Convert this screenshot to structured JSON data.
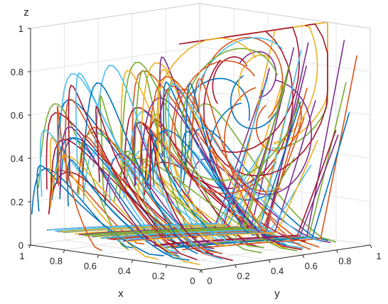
{
  "chart_data": {
    "type": "line",
    "subtype": "3d-streamlines",
    "title": "",
    "xlabel": "x",
    "ylabel": "y",
    "zlabel": "z",
    "xlim": [
      0,
      1
    ],
    "ylim": [
      0,
      1
    ],
    "zlim": [
      0,
      1
    ],
    "x_ticks": [
      "0",
      "0.2",
      "0.4",
      "0.6",
      "0.8",
      "1"
    ],
    "y_ticks": [
      "0",
      "0.2",
      "0.4",
      "0.6",
      "0.8",
      "1"
    ],
    "z_ticks": [
      "0",
      "0.2",
      "0.4",
      "0.6",
      "0.8",
      "1"
    ],
    "grid": true,
    "box": true,
    "legend": "none",
    "colors": [
      "#0072BD",
      "#D95319",
      "#EDB120",
      "#7E2F8E",
      "#77AC30",
      "#4DBEEE",
      "#A2142F"
    ],
    "trajectory_count": 120
  }
}
